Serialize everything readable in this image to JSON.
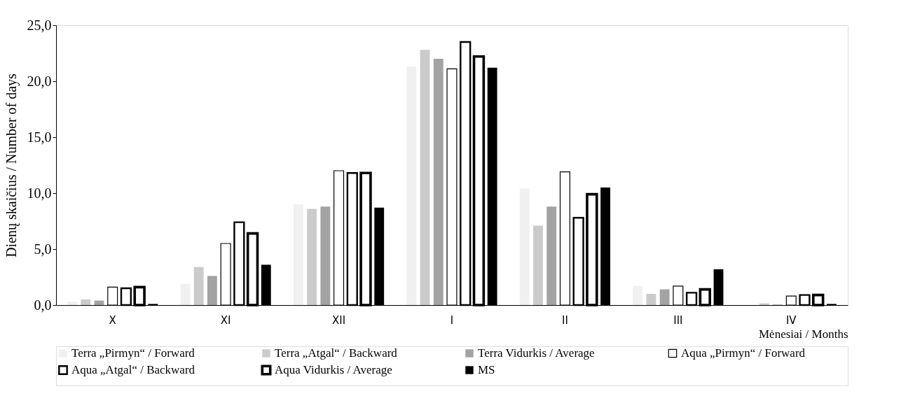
{
  "chart_data": {
    "type": "bar",
    "xlabel": "Mėnesiai / Months",
    "ylabel": "Dienų skaičius / Number of days",
    "categories": [
      "X",
      "XI",
      "XII",
      "I",
      "II",
      "III",
      "IV"
    ],
    "ylim": [
      0,
      25
    ],
    "yticks": [
      {
        "value": 0,
        "label": "0,0"
      },
      {
        "value": 5,
        "label": "5,0"
      },
      {
        "value": 10,
        "label": "10,0"
      },
      {
        "value": 15,
        "label": "15,0"
      },
      {
        "value": 20,
        "label": "20,0"
      },
      {
        "value": 25,
        "label": "25,0"
      }
    ],
    "grid": false,
    "legend": "bottom",
    "series": [
      {
        "name": "Terra „Pirmyn“ / Forward",
        "color": "#f0f0f0",
        "values": [
          0.3,
          1.9,
          9.0,
          21.3,
          10.4,
          1.7,
          0.0
        ]
      },
      {
        "name": "Terra „Atgal“ / Backward",
        "color": "#cccbcc",
        "values": [
          0.5,
          3.4,
          8.6,
          22.8,
          7.1,
          1.0,
          0.15
        ]
      },
      {
        "name": "Terra Vidurkis / Average",
        "color": "#a3a3a3",
        "values": [
          0.4,
          2.6,
          8.8,
          22.0,
          8.8,
          1.4,
          0.05
        ]
      },
      {
        "name": "Aqua „Pirmyn“ / Forward",
        "color": "#ffffff",
        "values": [
          1.6,
          5.5,
          12.0,
          21.1,
          11.9,
          1.7,
          0.8
        ]
      },
      {
        "name": "Aqua „Atgal“ / Backward",
        "color": "#ffffff",
        "values": [
          1.5,
          7.4,
          11.8,
          23.5,
          7.8,
          1.1,
          0.9
        ]
      },
      {
        "name": "Aqua Vidurkis / Average",
        "color": "#ffffff",
        "values": [
          1.6,
          6.4,
          11.8,
          22.2,
          9.9,
          1.4,
          0.9
        ]
      },
      {
        "name": "MS",
        "color": "#000000",
        "values": [
          0.1,
          3.6,
          8.7,
          21.2,
          10.5,
          3.2,
          0.1
        ]
      }
    ]
  }
}
